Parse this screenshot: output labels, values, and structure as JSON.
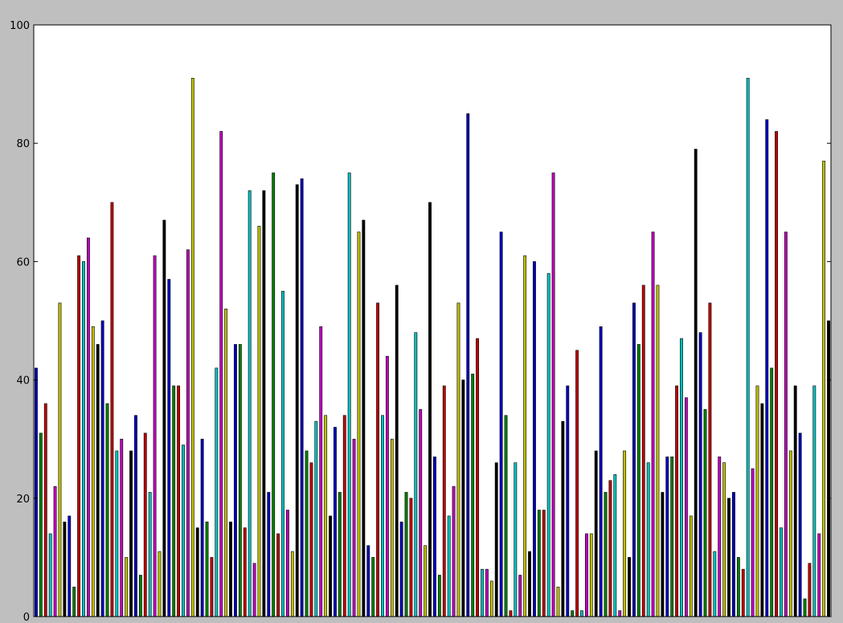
{
  "chart_data": {
    "type": "bar",
    "ylim": [
      0,
      100
    ],
    "yticks": [
      0,
      20,
      40,
      60,
      80,
      100
    ],
    "grid": false,
    "values": [
      42,
      31,
      36,
      14,
      22,
      53,
      16,
      17,
      5,
      61,
      60,
      64,
      49,
      46,
      50,
      36,
      70,
      28,
      30,
      10,
      28,
      34,
      7,
      31,
      21,
      61,
      11,
      67,
      57,
      39,
      39,
      29,
      62,
      91,
      15,
      30,
      16,
      10,
      42,
      82,
      52,
      16,
      46,
      46,
      15,
      72,
      9,
      66,
      72,
      21,
      75,
      14,
      55,
      18,
      11,
      73,
      74,
      28,
      26,
      33,
      49,
      34,
      17,
      32,
      21,
      34,
      75,
      30,
      65,
      67,
      12,
      10,
      53,
      34,
      44,
      30,
      56,
      16,
      21,
      20,
      48,
      35,
      12,
      70,
      27,
      7,
      39,
      17,
      22,
      53,
      40,
      85,
      41,
      47,
      8,
      8,
      6,
      26,
      65,
      34,
      1,
      26,
      7,
      61,
      11,
      60,
      18,
      18,
      58,
      75,
      5,
      33,
      39,
      1,
      45,
      1,
      14,
      14,
      28,
      49,
      21,
      23,
      24,
      1,
      28,
      10,
      53,
      46,
      56,
      26,
      65,
      56,
      21,
      27,
      27,
      39,
      47,
      37,
      17,
      79,
      48,
      35,
      53,
      11,
      27,
      26,
      20,
      21,
      10,
      8,
      91,
      25,
      39,
      36,
      84,
      42,
      82,
      15,
      65,
      28,
      39,
      31,
      3,
      9,
      39,
      14,
      77,
      50
    ],
    "colors": [
      "#0000bf",
      "#008000",
      "#bf0000",
      "#00bfbf",
      "#bf00bf",
      "#bfbf00",
      "#000000"
    ]
  }
}
